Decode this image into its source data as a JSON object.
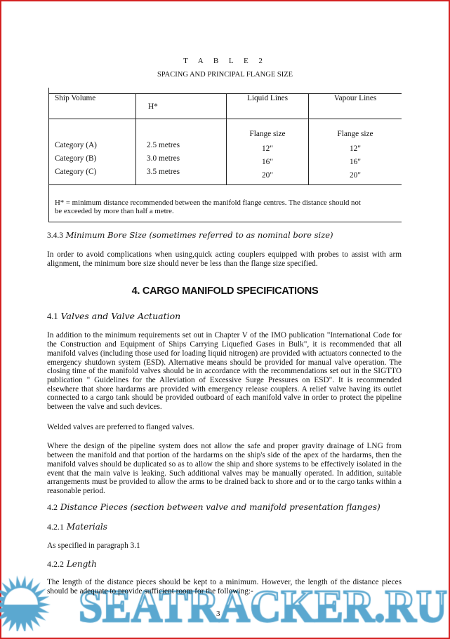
{
  "table": {
    "label": "T A B L E   2",
    "title": "SPACING AND PRINCIPAL FLANGE SIZE",
    "headers": [
      "Ship Volume",
      "H*",
      "Liquid Lines",
      "Vapour Lines"
    ],
    "subheader": "Flange size",
    "rows": [
      {
        "category": "Category (A)",
        "h": "2.5 metres",
        "liquid": "12\"",
        "vapour": "12\""
      },
      {
        "category": "Category (B)",
        "h": "3.0 metres",
        "liquid": "16\"",
        "vapour": "16\""
      },
      {
        "category": "Category (C)",
        "h": "3.5 metres",
        "liquid": "20\"",
        "vapour": "20\""
      }
    ],
    "footnote_1": "H* = minimum distance recommended between the manifold flange centres. The distance should not",
    "footnote_2": "be exceeded by more than half a metre."
  },
  "s343": {
    "num": "3.4.3",
    "title": "Minimum Bore Size (sometimes referred to as nominal bore size)",
    "text": "In order to avoid complications when using,quick acting couplers equipped with probes to assist with arm alignment, the minimum bore size should never be less than the flange size specified."
  },
  "s4": {
    "title": "4. CARGO MANIFOLD SPECIFICATIONS"
  },
  "s41": {
    "num": "4.1",
    "title": "Valves and Valve Actuation",
    "p1": "In addition to the minimum requirements set out in Chapter V of the IMO publication \"International Code for the Construction and Equipment of Ships Carrying Liquefied Gases in Bulk\", it is recommended that all manifold valves (including those used for loading liquid nitrogen) are provided with actuators connected to the emergency shutdown system (ESD). Alternative means should be provided for manual valve operation. The closing time of the manifold valves should be in accordance with the recommendations set out in the SIGTTO publication \" Guidelines for the Alleviation of Excessive Surge Pressures on ESD\". It is recommended elsewhere that shore hardarms are provided with emergency release couplers. A relief valve having its outlet connected to a cargo tank should be provided outboard of each manifold valve in order to protect the pipeline between the valve and such devices.",
    "p2": "Welded valves are preferred to flanged valves.",
    "p3": "Where the design of the pipeline system does not allow the safe and proper gravity drainage of LNG from between the manifold and that portion of the hardarms on the ship's side of the apex of the hardarms, then the manifold valves should be duplicated so as to allow the ship and shore systems to be effectively isolated in the event that the main valve is leaking. Such additional valves may be manually operated. In addition, suitable arrangements must be provided to allow the arms to be drained back to shore and or to the cargo tanks within a reasonable period."
  },
  "s42": {
    "num": "4.2",
    "title": "Distance Pieces (section between valve and manifold presentation flanges)"
  },
  "s421": {
    "num": "4.2.1",
    "title": "Materials",
    "text": "As specified in paragraph 3.1"
  },
  "s422": {
    "num": "4.2.2",
    "title": "Length",
    "text": "The length of the distance pieces should be kept to a minimum. However, the length of the distance pieces should be adequate to provide sufficient room for the following:-"
  },
  "page_number": "3",
  "watermark": {
    "text": "SEATRACKER.RU",
    "color": "#5ba8d0"
  },
  "colors": {
    "border": "#d42020"
  }
}
